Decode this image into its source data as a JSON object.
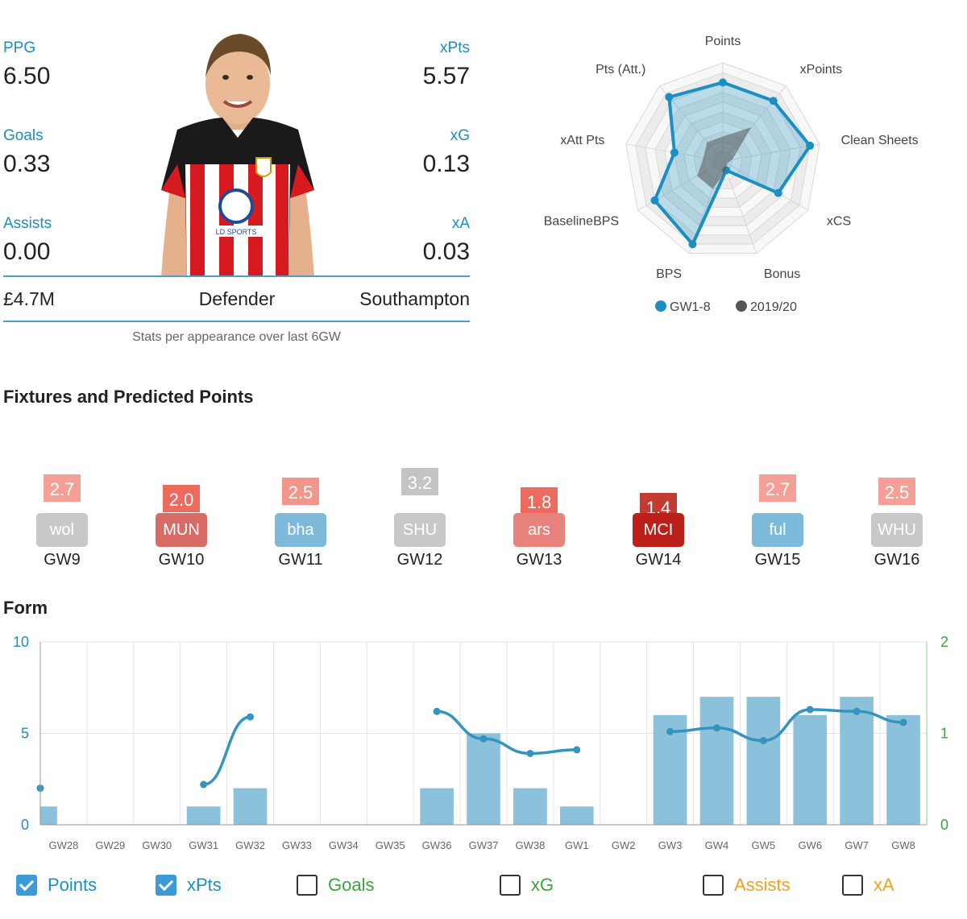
{
  "player": {
    "stats": {
      "ppg_label": "PPG",
      "ppg": "6.50",
      "xpts_label": "xPts",
      "xpts": "5.57",
      "goals_label": "Goals",
      "goals": "0.33",
      "xg_label": "xG",
      "xg": "0.13",
      "assists_label": "Assists",
      "assists": "0.00",
      "xa_label": "xA",
      "xa": "0.03"
    },
    "price": "£4.7M",
    "position": "Defender",
    "team": "Southampton",
    "caption": "Stats per appearance over last 6GW",
    "shirt_sponsor": "LD SPORTS",
    "colors": {
      "shirt_red": "#d71920",
      "shirt_black": "#1a1a1a"
    }
  },
  "radar": {
    "axes": [
      "Points",
      "xPoints",
      "Clean Sheets",
      "xCS",
      "Bonus",
      "BPS",
      "BaselineBPS",
      "xAtt Pts",
      "Pts (Att.)"
    ],
    "max": 1,
    "series": [
      {
        "name": "GW1-8",
        "color": "#1b8ec2",
        "values": [
          0.8,
          0.8,
          0.9,
          0.65,
          0.1,
          0.9,
          0.8,
          0.5,
          0.85
        ]
      },
      {
        "name": "2019/20",
        "color": "#555555",
        "values": [
          0.25,
          0.45,
          0.1,
          0.05,
          0.1,
          0.3,
          0.3,
          0.2,
          0.25
        ]
      }
    ]
  },
  "fixtures": {
    "title": "Fixtures and Predicted Points",
    "items": [
      {
        "gw": "GW9",
        "opp": "wol",
        "pred": "2.7",
        "opp_color": "#c8c8c8",
        "pred_color": "#f4a097"
      },
      {
        "gw": "GW10",
        "opp": "MUN",
        "pred": "2.0",
        "opp_color": "#d86b66",
        "pred_color": "#ec6a5e"
      },
      {
        "gw": "GW11",
        "opp": "bha",
        "pred": "2.5",
        "opp_color": "#7db9d8",
        "pred_color": "#f2958a"
      },
      {
        "gw": "GW12",
        "opp": "SHU",
        "pred": "3.2",
        "opp_color": "#c8c8c8",
        "pred_color": "#c4c4c4"
      },
      {
        "gw": "GW13",
        "opp": "ars",
        "pred": "1.8",
        "opp_color": "#e7837c",
        "pred_color": "#ec6a5e"
      },
      {
        "gw": "GW14",
        "opp": "MCI",
        "pred": "1.4",
        "opp_color": "#bd1f1a",
        "pred_color": "#c23c33"
      },
      {
        "gw": "GW15",
        "opp": "ful",
        "pred": "2.7",
        "opp_color": "#7db9d8",
        "pred_color": "#f4a097"
      },
      {
        "gw": "GW16",
        "opp": "WHU",
        "pred": "2.5",
        "opp_color": "#c8c8c8",
        "pred_color": "#f4a097"
      }
    ]
  },
  "form": {
    "title": "Form",
    "chart_data": {
      "type": "bar",
      "categories": [
        "GW28",
        "GW29",
        "GW30",
        "GW31",
        "GW32",
        "GW33",
        "GW34",
        "GW35",
        "GW36",
        "GW37",
        "GW38",
        "GW1",
        "GW2",
        "GW3",
        "GW4",
        "GW5",
        "GW6",
        "GW7",
        "GW8"
      ],
      "series": [
        {
          "name": "Points",
          "type": "bar",
          "axis": "left",
          "color": "#8cc1dc",
          "values": [
            1,
            null,
            null,
            1,
            2,
            null,
            null,
            null,
            2,
            5,
            2,
            1,
            null,
            6,
            7,
            7,
            6,
            7,
            6
          ]
        },
        {
          "name": "xPts",
          "type": "line",
          "axis": "left",
          "color": "#3394c0",
          "values": [
            2,
            null,
            null,
            2.2,
            5.9,
            null,
            null,
            null,
            6.2,
            4.7,
            3.9,
            4.1,
            null,
            5.1,
            5.3,
            4.6,
            6.3,
            6.2,
            5.6
          ]
        }
      ],
      "ylim": [
        0,
        10
      ],
      "y_ticks": [
        "0",
        "5",
        "10"
      ],
      "y2lim": [
        0,
        2
      ],
      "y2_ticks": [
        "0",
        "1",
        "2"
      ],
      "grid": true
    },
    "legend": [
      {
        "label": "Points",
        "checked": true,
        "color": "#1b8ec2"
      },
      {
        "label": "xPts",
        "checked": true,
        "color": "#1b8ec2"
      },
      {
        "label": "Goals",
        "checked": false,
        "color": "#3aa43a"
      },
      {
        "label": "xG",
        "checked": false,
        "color": "#3aa43a"
      },
      {
        "label": "Assists",
        "checked": false,
        "color": "#f0a020"
      },
      {
        "label": "xA",
        "checked": false,
        "color": "#f0a020"
      }
    ]
  }
}
